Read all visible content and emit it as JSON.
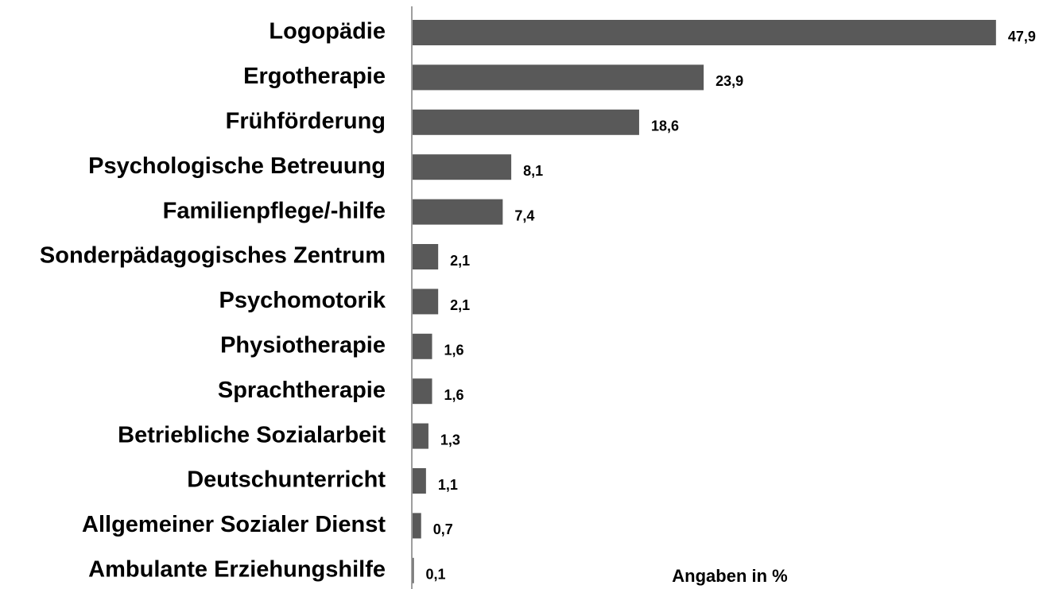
{
  "chart_data": {
    "type": "barh",
    "categories": [
      "Logopädie",
      "Ergotherapie",
      "Frühförderung",
      "Psychologische Betreuung",
      "Familienpflege/-hilfe",
      "Sonderpädagogisches Zentrum",
      "Psychomotorik",
      "Physiotherapie",
      "Sprachtherapie",
      "Betriebliche Sozialarbeit",
      "Deutschunterricht",
      "Allgemeiner Sozialer Dienst",
      "Ambulante Erziehungshilfe"
    ],
    "values": [
      47.9,
      23.9,
      18.6,
      8.1,
      7.4,
      2.1,
      2.1,
      1.6,
      1.6,
      1.3,
      1.1,
      0.7,
      0.1
    ],
    "value_labels": [
      "47,9",
      "23,9",
      "18,6",
      "8,1",
      "7,4",
      "2,1",
      "2,1",
      "1,6",
      "1,6",
      "1,3",
      "1,1",
      "0,7",
      "0,1"
    ],
    "color": "#595959",
    "xlabel": "Angaben in %",
    "xlim": [
      0,
      50
    ]
  }
}
